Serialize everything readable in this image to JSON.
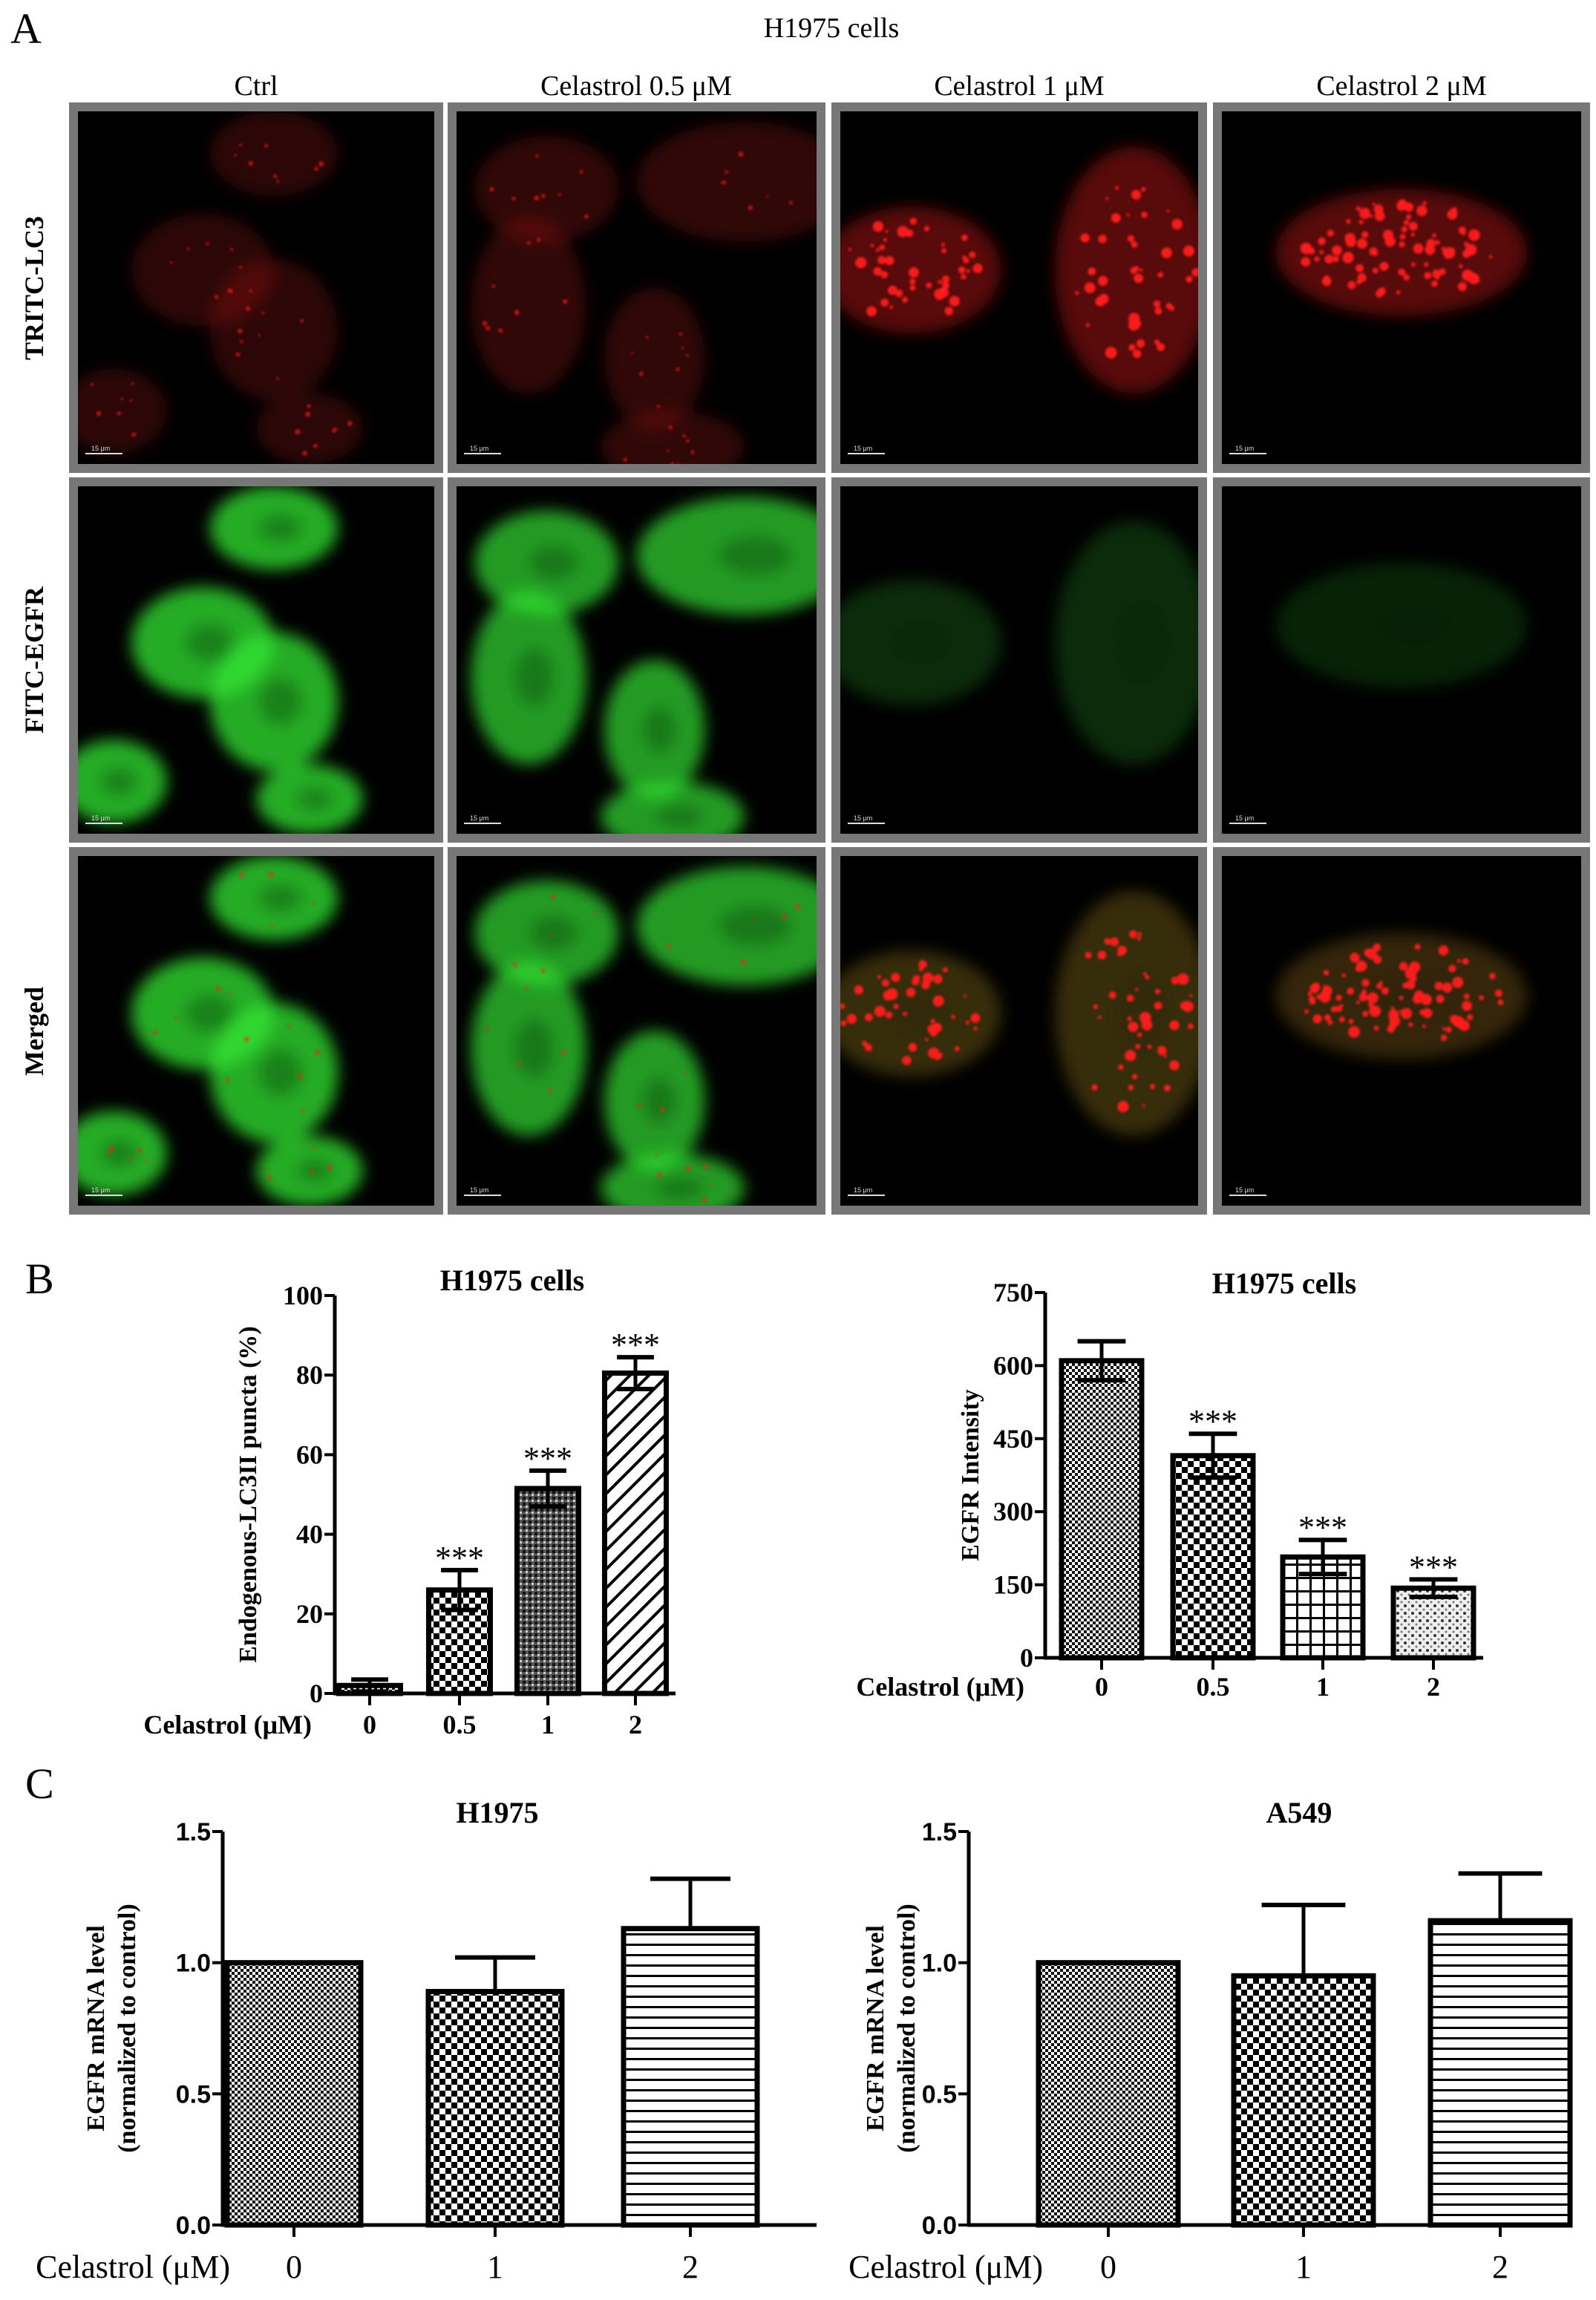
{
  "panel_a": {
    "label": "A",
    "title": "H1975 cells",
    "columns": [
      "Ctrl",
      "Celastrol 0.5 μM",
      "Celastrol 1 μM",
      "Celastrol 2 μM"
    ],
    "rows": [
      "TRITC-LC3",
      "FITC-EGFR",
      "Merged"
    ],
    "scale_bar_label": "15 μm",
    "channel_colors": {
      "TRITC": "#ff1a1a",
      "FITC": "#33e633"
    }
  },
  "panel_b": {
    "label": "B"
  },
  "panel_c": {
    "label": "C"
  },
  "chart_data": [
    {
      "type": "bar",
      "title": "H1975 cells",
      "ylabel": "Endogenous-LC3II puncta (%)",
      "xlabel": "Celastrol (μM)",
      "categories": [
        "0",
        "0.5",
        "1",
        "2"
      ],
      "values": [
        2,
        26,
        51.5,
        80.5
      ],
      "errors": [
        1.5,
        5,
        4.5,
        4
      ],
      "significance": [
        "",
        "***",
        "***",
        "***"
      ],
      "ylim": [
        0,
        100
      ],
      "yticks": [
        0,
        20,
        40,
        60,
        80,
        100
      ],
      "ytick_labels": [
        "0",
        "20",
        "40",
        "60",
        "80",
        "100"
      ],
      "patterns": [
        "fine-checker",
        "coarse-checker",
        "dense-checker",
        "diagonal-hatch"
      ],
      "grid": false
    },
    {
      "type": "bar",
      "title": "H1975 cells",
      "ylabel": "EGFR Intensity",
      "xlabel": "Celastrol (μM)",
      "categories": [
        "0",
        "0.5",
        "1",
        "2"
      ],
      "values": [
        610,
        415,
        207,
        143
      ],
      "errors": [
        40,
        45,
        35,
        18
      ],
      "significance": [
        "",
        "***",
        "***",
        "***"
      ],
      "ylim": [
        0,
        750
      ],
      "yticks": [
        0,
        150,
        300,
        450,
        600,
        750
      ],
      "ytick_labels": [
        "0",
        "150",
        "300",
        "450",
        "600",
        "750"
      ],
      "patterns": [
        "fine-checker",
        "coarse-checker",
        "grid",
        "dots"
      ],
      "grid": false
    },
    {
      "type": "bar",
      "title": "H1975",
      "ylabel": "EGFR mRNA level",
      "ylabel2": "(normalized to control)",
      "xlabel": "Celastrol (μM)",
      "categories": [
        "0",
        "1",
        "2"
      ],
      "values": [
        1.0,
        0.89,
        1.13
      ],
      "errors": [
        0,
        0.13,
        0.19
      ],
      "significance": [
        "",
        "",
        ""
      ],
      "ylim": [
        0,
        1.5
      ],
      "yticks": [
        0,
        0.5,
        1.0,
        1.5
      ],
      "ytick_labels": [
        "0.0",
        "0.5",
        "1.0",
        "1.5"
      ],
      "patterns": [
        "fine-checker",
        "coarse-checker",
        "horizontal-lines"
      ],
      "grid": false
    },
    {
      "type": "bar",
      "title": "A549",
      "ylabel": "EGFR mRNA level",
      "ylabel2": "(normalized to control)",
      "xlabel": "Celastrol (μM)",
      "categories": [
        "0",
        "1",
        "2"
      ],
      "values": [
        1.0,
        0.95,
        1.16
      ],
      "errors": [
        0,
        0.27,
        0.18
      ],
      "significance": [
        "",
        "",
        ""
      ],
      "ylim": [
        0,
        1.5
      ],
      "yticks": [
        0,
        0.5,
        1.0,
        1.5
      ],
      "ytick_labels": [
        "0.0",
        "0.5",
        "1.0",
        "1.5"
      ],
      "patterns": [
        "fine-checker",
        "coarse-checker",
        "horizontal-lines"
      ],
      "grid": false
    }
  ]
}
